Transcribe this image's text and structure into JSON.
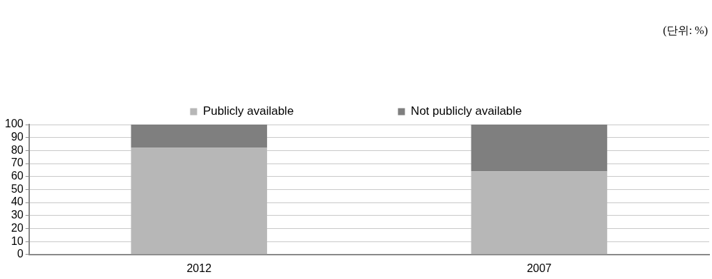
{
  "chart_data": {
    "type": "bar",
    "stacked": true,
    "categories": [
      "2012",
      "2007"
    ],
    "series": [
      {
        "name": "Publicly available",
        "color": "#b7b7b7",
        "values": [
          82,
          64
        ]
      },
      {
        "name": "Not publicly available",
        "color": "#7f7f7f",
        "values": [
          18,
          36
        ]
      }
    ],
    "ylim": [
      0,
      100
    ],
    "yticks": [
      0,
      10,
      20,
      30,
      40,
      50,
      60,
      70,
      80,
      90,
      100
    ],
    "grid": "y",
    "legend": "top",
    "annotations": [
      "(단위: %)"
    ]
  }
}
